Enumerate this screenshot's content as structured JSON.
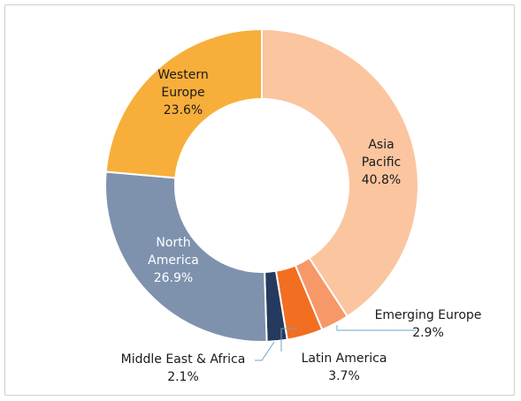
{
  "chart_data": {
    "type": "pie",
    "donut": true,
    "title": "",
    "slices": [
      {
        "name_lines": [
          "Asia",
          "Pacific"
        ],
        "value": 40.8,
        "label": "40.8%",
        "color": "#FBC59F"
      },
      {
        "name_lines": [
          "Emerging Europe"
        ],
        "value": 2.9,
        "label": "2.9%",
        "color": "#F79868"
      },
      {
        "name_lines": [
          "Latin America"
        ],
        "value": 3.7,
        "label": "3.7%",
        "color": "#F26E21"
      },
      {
        "name_lines": [
          "Middle East & Africa"
        ],
        "value": 2.1,
        "label": "2.1%",
        "color": "#253A5E"
      },
      {
        "name_lines": [
          "North",
          "America"
        ],
        "value": 26.9,
        "label": "26.9%",
        "color": "#7E92AE"
      },
      {
        "name_lines": [
          "Western",
          "Europe"
        ],
        "value": 23.6,
        "label": "23.6%",
        "color": "#F8AE3A"
      }
    ],
    "leader_line_color": "#6FA4C8",
    "legend": "none"
  }
}
